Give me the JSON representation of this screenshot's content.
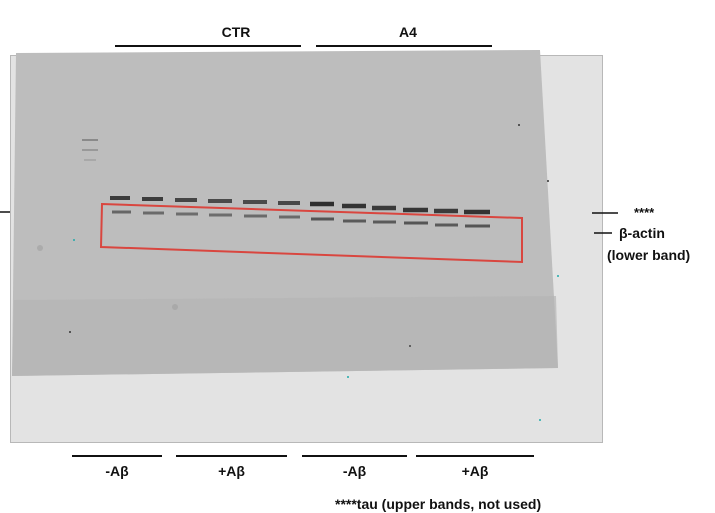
{
  "groups": {
    "ctr": "CTR",
    "a4": "A4"
  },
  "lanes": {
    "ctr_minus": "-Aβ",
    "ctr_plus": "+Aβ",
    "a4_minus": "-Aβ",
    "a4_plus": "+Aβ"
  },
  "markers": {
    "tau": "****",
    "actin_line1": "β-actin",
    "actin_line2": "(lower band)"
  },
  "footnote": "****tau (upper bands, not used)",
  "colors": {
    "highlight_box": "#d9463f",
    "membrane": "#bdbdbd",
    "frame": "#e3e3e3"
  }
}
